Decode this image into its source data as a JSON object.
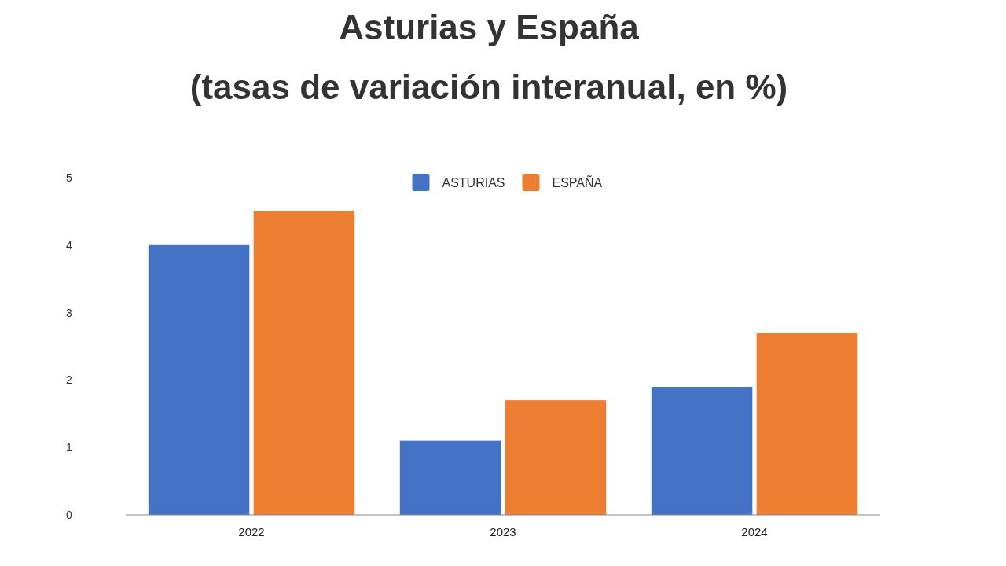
{
  "chart_data": {
    "type": "bar",
    "title": "Asturias y España\n(tasas de variación interanual, en %)",
    "categories": [
      "2022",
      "2023",
      "2024"
    ],
    "series": [
      {
        "name": "ASTURIAS",
        "color": "#4472c4",
        "values": [
          4.0,
          1.1,
          1.9
        ]
      },
      {
        "name": "ESPAÑA",
        "color": "#ed7d31",
        "values": [
          4.5,
          1.7,
          2.7
        ]
      }
    ],
    "ylim": [
      0,
      5
    ],
    "yticks": [
      0,
      1,
      2,
      3,
      4,
      5
    ],
    "grid": false,
    "legend": "top"
  }
}
